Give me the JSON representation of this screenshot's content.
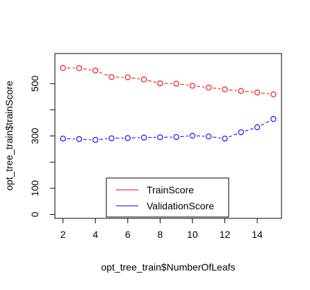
{
  "chart_data": {
    "type": "line",
    "title": "",
    "xlabel": "opt_tree_train$NumberOfLeafs",
    "ylabel": "opt_tree_train$trainScore",
    "x": [
      2,
      3,
      4,
      5,
      6,
      7,
      8,
      9,
      10,
      11,
      12,
      13,
      14,
      15
    ],
    "xlim": [
      1.5,
      15.5
    ],
    "ylim": [
      -15,
      615
    ],
    "x_ticks": [
      2,
      4,
      6,
      8,
      10,
      12,
      14
    ],
    "y_ticks": [
      0,
      100,
      200,
      300,
      400,
      500
    ],
    "y_tick_labels": [
      "0",
      "100",
      "",
      "300",
      "",
      "500"
    ],
    "grid": false,
    "legend_position": "bottom-center",
    "series": [
      {
        "name": "TrainScore",
        "color": "#ff0000",
        "values": [
          560,
          559,
          550,
          525,
          524,
          516,
          501,
          500,
          492,
          485,
          478,
          472,
          466,
          459
        ]
      },
      {
        "name": "ValidationScore",
        "color": "#0000ff",
        "values": [
          290,
          288,
          285,
          291,
          292,
          294,
          295,
          296,
          301,
          298,
          290,
          314,
          333,
          365
        ]
      }
    ]
  }
}
